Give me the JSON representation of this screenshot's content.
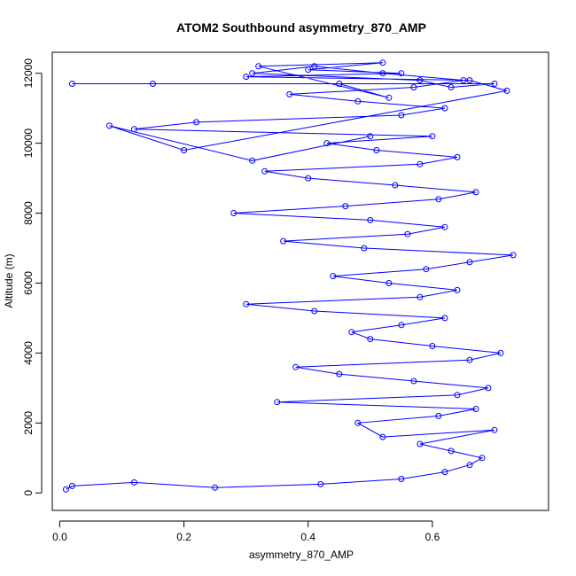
{
  "chart_data": {
    "type": "scatter",
    "title": "ATOM2 Southbound asymmetry_870_AMP",
    "xlabel": "asymmetry_870_AMP",
    "ylabel": "Altitude (m)",
    "xlim": [
      -0.012,
      0.787
    ],
    "ylim": [
      -500,
      12600
    ],
    "xticks": [
      0.0,
      0.2,
      0.4,
      0.6
    ],
    "xtick_labels": [
      "0.0",
      "0.2",
      "0.4",
      "0.6"
    ],
    "yticks": [
      0,
      2000,
      4000,
      6000,
      8000,
      10000,
      12000
    ],
    "ytick_labels": [
      "0",
      "2000",
      "4000",
      "6000",
      "8000",
      "10000",
      "12000"
    ],
    "grid": false,
    "legend": "none",
    "style": {
      "series_color": "#0000ff",
      "marker": "open-circle",
      "connected_lines": true
    },
    "series": [
      {
        "x": [
          0.01,
          0.02,
          0.12,
          0.25,
          0.42,
          0.55,
          0.62,
          0.66,
          0.68,
          0.63,
          0.58,
          0.7,
          0.52,
          0.48,
          0.61,
          0.67,
          0.35,
          0.64,
          0.69,
          0.57,
          0.45,
          0.38,
          0.66,
          0.71,
          0.6,
          0.5,
          0.47,
          0.55,
          0.62,
          0.41,
          0.3,
          0.58,
          0.64,
          0.53,
          0.44,
          0.59,
          0.66,
          0.73,
          0.49,
          0.36,
          0.56,
          0.62,
          0.5,
          0.28,
          0.46,
          0.61,
          0.67,
          0.54,
          0.4,
          0.33,
          0.58,
          0.64,
          0.51,
          0.43,
          0.6,
          0.12,
          0.22,
          0.55,
          0.62,
          0.48,
          0.37,
          0.57,
          0.65,
          0.52,
          0.41,
          0.31,
          0.58,
          0.63,
          0.7,
          0.02,
          0.15,
          0.45,
          0.53,
          0.32,
          0.52,
          0.4,
          0.55,
          0.3,
          0.66,
          0.72,
          0.2,
          0.08,
          0.31,
          0.5
        ],
        "y": [
          100,
          200,
          300,
          150,
          250,
          400,
          600,
          800,
          1000,
          1200,
          1400,
          1800,
          1600,
          2000,
          2200,
          2400,
          2600,
          2800,
          3000,
          3200,
          3400,
          3600,
          3800,
          4000,
          4200,
          4400,
          4600,
          4800,
          5000,
          5200,
          5400,
          5600,
          5800,
          6000,
          6200,
          6400,
          6600,
          6800,
          7000,
          7200,
          7400,
          7600,
          7800,
          8000,
          8200,
          8400,
          8600,
          8800,
          9000,
          9200,
          9400,
          9600,
          9800,
          10000,
          10200,
          10400,
          10600,
          10800,
          11000,
          11200,
          11400,
          11600,
          11800,
          12000,
          12200,
          12000,
          11800,
          11600,
          11700,
          11700,
          11700,
          11700,
          11300,
          12200,
          12300,
          12100,
          12000,
          11900,
          11800,
          11500,
          9800,
          10500,
          9500,
          10200
        ]
      }
    ]
  }
}
